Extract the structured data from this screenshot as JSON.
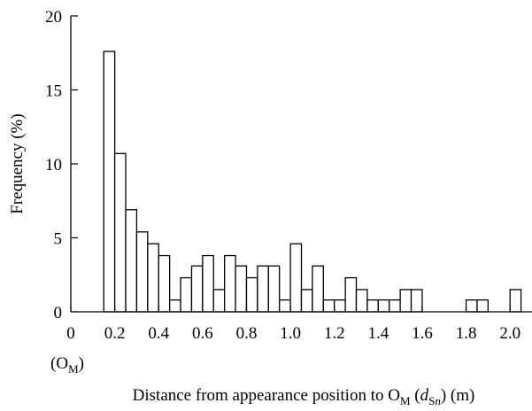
{
  "chart_data": {
    "type": "bar",
    "title": "",
    "xlabel": "Distance from appearance position to O",
    "xlabel_sub": "M",
    "xlabel_paren_open": " (",
    "xlabel_d": "d",
    "xlabel_d_sub_S": "S",
    "xlabel_d_sub_n": "n",
    "xlabel_tail": ") (m)",
    "ylabel": "Frequency  (%)",
    "origin_label_main": "(O",
    "origin_label_sub": "M",
    "origin_label_close": ")",
    "xlim": [
      0,
      2.1
    ],
    "ylim": [
      0,
      20
    ],
    "x_ticks": [
      0,
      0.2,
      0.4,
      0.6,
      0.8,
      1.0,
      1.2,
      1.4,
      1.6,
      1.8,
      2.0
    ],
    "x_tick_labels": [
      "0",
      "0.2",
      "0.4",
      "0.6",
      "0.8",
      "1.0",
      "1.2",
      "1.4",
      "1.6",
      "1.8",
      "2.0"
    ],
    "y_ticks": [
      0,
      5,
      10,
      15,
      20
    ],
    "y_tick_labels": [
      "0",
      "5",
      "10",
      "15",
      "20"
    ],
    "bin_width": 0.05,
    "bin_starts": [
      0.15,
      0.2,
      0.25,
      0.3,
      0.35,
      0.4,
      0.45,
      0.5,
      0.55,
      0.6,
      0.65,
      0.7,
      0.75,
      0.8,
      0.85,
      0.9,
      0.95,
      1.0,
      1.05,
      1.1,
      1.15,
      1.2,
      1.25,
      1.3,
      1.35,
      1.4,
      1.45,
      1.5,
      1.55,
      1.6,
      1.65,
      1.7,
      1.75,
      1.8,
      1.85,
      1.9,
      1.95,
      2.0,
      2.05
    ],
    "values": [
      17.6,
      10.7,
      6.9,
      5.4,
      4.6,
      3.8,
      0.8,
      2.3,
      3.1,
      3.8,
      1.5,
      3.8,
      3.1,
      2.3,
      3.1,
      3.1,
      0.8,
      4.6,
      1.5,
      3.1,
      0.8,
      0.8,
      2.3,
      1.5,
      0.8,
      0.8,
      0.8,
      1.5,
      1.5,
      0,
      0,
      0,
      0,
      0.8,
      0.8,
      0,
      0,
      1.5,
      0
    ],
    "grid": false,
    "legend": "none"
  }
}
